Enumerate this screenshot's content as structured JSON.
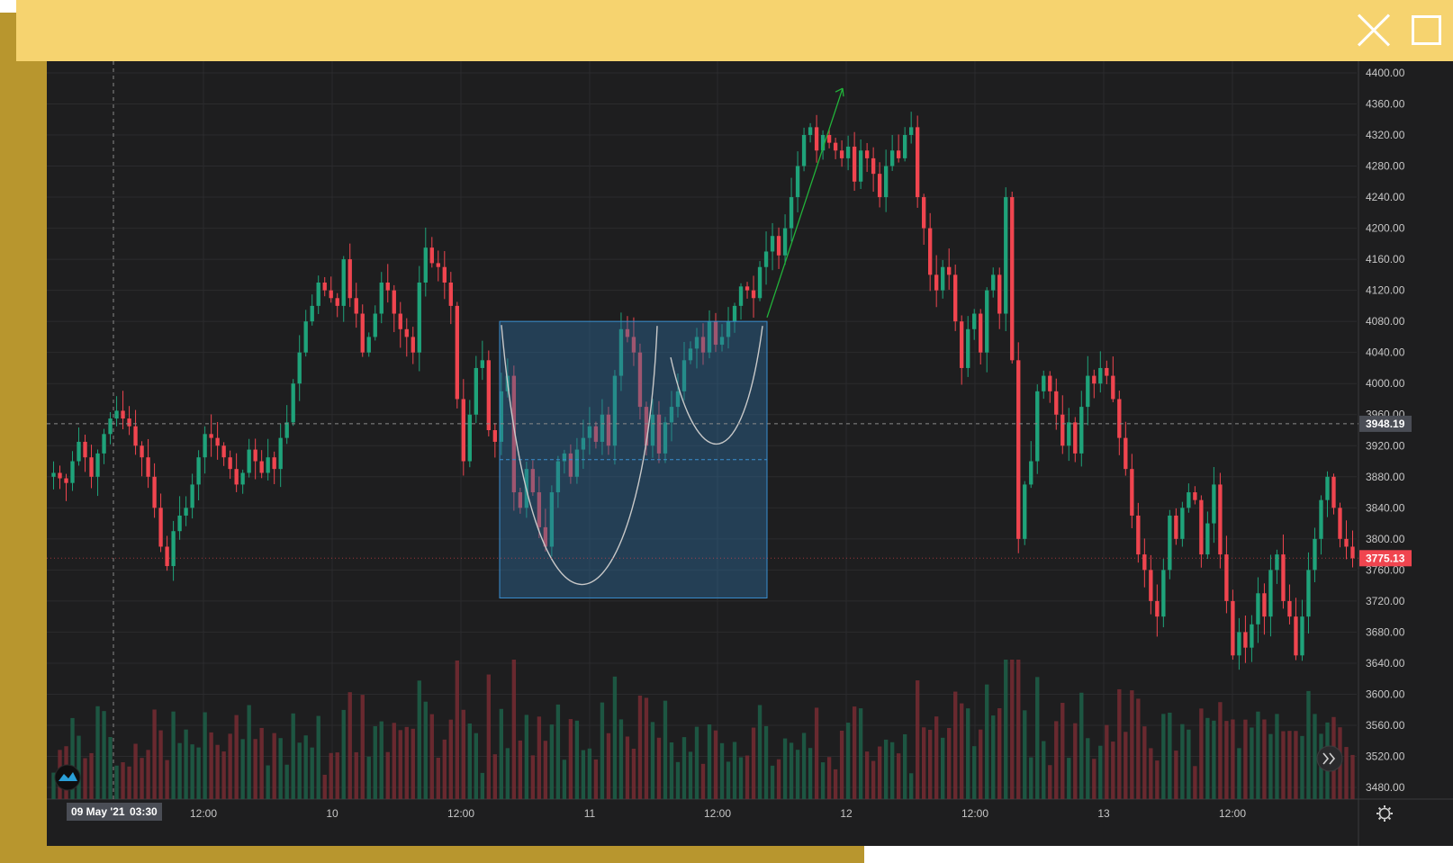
{
  "window": {
    "close_icon": "close-icon",
    "maximize_icon": "maximize-icon"
  },
  "colors": {
    "up": "#1fa37a",
    "down": "#f0454f",
    "background": "#1e1e1f",
    "frame_gold": "#b8962e",
    "top_bar": "#f6d36f"
  },
  "chart_data": {
    "type": "candlestick",
    "y_axis": {
      "ticks": [
        "4400.00",
        "4360.00",
        "4320.00",
        "4280.00",
        "4240.00",
        "4200.00",
        "4160.00",
        "4120.00",
        "4080.00",
        "4040.00",
        "4000.00",
        "3960.00",
        "3920.00",
        "3880.00",
        "3840.00",
        "3800.00",
        "3760.00",
        "3720.00",
        "3680.00",
        "3640.00",
        "3600.00",
        "3560.00",
        "3520.00",
        "3480.00"
      ],
      "range": [
        3465,
        4415
      ]
    },
    "x_axis": {
      "ticks": [
        "12:00",
        "10",
        "12:00",
        "11",
        "12:00",
        "12",
        "12:00",
        "13",
        "12:00"
      ]
    },
    "crosshair": {
      "price_label": "3948.19",
      "price": 3948.19,
      "date_label": "09 May '21",
      "time_label": "03:30"
    },
    "last_price": {
      "label": "3775.13",
      "value": 3775.13
    },
    "pattern": {
      "name": "cup and handle",
      "box_top": 4080,
      "box_bottom": 3724,
      "box_mid": 3902,
      "arrow_from": 4085,
      "arrow_to": 4380
    },
    "price_path": [
      [
        0,
        3885
      ],
      [
        5,
        3878
      ],
      [
        10,
        3872
      ],
      [
        15,
        3900
      ],
      [
        20,
        3925
      ],
      [
        25,
        3905
      ],
      [
        30,
        3880
      ],
      [
        35,
        3910
      ],
      [
        40,
        3935
      ],
      [
        45,
        3955
      ],
      [
        50,
        3965
      ],
      [
        55,
        3955
      ],
      [
        60,
        3945
      ],
      [
        65,
        3920
      ],
      [
        70,
        3905
      ],
      [
        75,
        3880
      ],
      [
        80,
        3840
      ],
      [
        85,
        3790
      ],
      [
        90,
        3765
      ],
      [
        95,
        3810
      ],
      [
        100,
        3830
      ],
      [
        105,
        3840
      ],
      [
        110,
        3870
      ],
      [
        115,
        3905
      ],
      [
        120,
        3935
      ],
      [
        125,
        3930
      ],
      [
        130,
        3920
      ],
      [
        135,
        3905
      ],
      [
        140,
        3890
      ],
      [
        145,
        3870
      ],
      [
        150,
        3885
      ],
      [
        155,
        3915
      ],
      [
        160,
        3900
      ],
      [
        165,
        3885
      ],
      [
        170,
        3905
      ],
      [
        175,
        3890
      ],
      [
        180,
        3930
      ],
      [
        185,
        3950
      ],
      [
        190,
        4000
      ],
      [
        195,
        4040
      ],
      [
        200,
        4080
      ],
      [
        205,
        4100
      ],
      [
        210,
        4130
      ],
      [
        215,
        4120
      ],
      [
        220,
        4110
      ],
      [
        225,
        4100
      ],
      [
        230,
        4160
      ],
      [
        235,
        4110
      ],
      [
        240,
        4090
      ],
      [
        245,
        4040
      ],
      [
        250,
        4060
      ],
      [
        255,
        4090
      ],
      [
        260,
        4130
      ],
      [
        265,
        4120
      ],
      [
        270,
        4090
      ],
      [
        275,
        4070
      ],
      [
        280,
        4060
      ],
      [
        285,
        4040
      ],
      [
        290,
        4130
      ],
      [
        295,
        4175
      ],
      [
        300,
        4155
      ],
      [
        305,
        4150
      ],
      [
        310,
        4130
      ],
      [
        315,
        4100
      ],
      [
        320,
        3980
      ],
      [
        325,
        3900
      ],
      [
        330,
        3960
      ],
      [
        335,
        4020
      ],
      [
        340,
        4030
      ],
      [
        345,
        3940
      ],
      [
        350,
        3925
      ],
      [
        355,
        3990
      ],
      [
        360,
        4010
      ],
      [
        365,
        3860
      ],
      [
        370,
        3840
      ],
      [
        375,
        3890
      ],
      [
        380,
        3860
      ],
      [
        385,
        3815
      ],
      [
        390,
        3790
      ],
      [
        395,
        3860
      ],
      [
        400,
        3900
      ],
      [
        405,
        3910
      ],
      [
        410,
        3880
      ],
      [
        415,
        3915
      ],
      [
        420,
        3930
      ],
      [
        425,
        3945
      ],
      [
        430,
        3925
      ],
      [
        435,
        3960
      ],
      [
        440,
        3920
      ],
      [
        445,
        4010
      ],
      [
        450,
        4070
      ],
      [
        455,
        4060
      ],
      [
        460,
        4040
      ],
      [
        465,
        3970
      ],
      [
        470,
        3920
      ],
      [
        475,
        3960
      ],
      [
        480,
        3910
      ],
      [
        485,
        3950
      ],
      [
        490,
        3970
      ],
      [
        495,
        3990
      ],
      [
        500,
        4030
      ],
      [
        505,
        4045
      ],
      [
        510,
        4060
      ],
      [
        515,
        4040
      ],
      [
        520,
        4080
      ],
      [
        525,
        4050
      ],
      [
        530,
        4060
      ],
      [
        535,
        4080
      ],
      [
        540,
        4100
      ],
      [
        545,
        4125
      ],
      [
        550,
        4120
      ],
      [
        555,
        4110
      ],
      [
        560,
        4150
      ],
      [
        565,
        4170
      ],
      [
        570,
        4190
      ],
      [
        575,
        4165
      ],
      [
        580,
        4200
      ],
      [
        585,
        4240
      ],
      [
        590,
        4280
      ],
      [
        595,
        4320
      ],
      [
        600,
        4330
      ],
      [
        605,
        4300
      ],
      [
        610,
        4320
      ],
      [
        615,
        4310
      ],
      [
        620,
        4300
      ],
      [
        625,
        4290
      ],
      [
        630,
        4305
      ],
      [
        635,
        4260
      ],
      [
        640,
        4300
      ],
      [
        645,
        4290
      ],
      [
        650,
        4270
      ],
      [
        655,
        4240
      ],
      [
        660,
        4280
      ],
      [
        665,
        4300
      ],
      [
        670,
        4290
      ],
      [
        675,
        4320
      ],
      [
        680,
        4330
      ],
      [
        685,
        4240
      ],
      [
        690,
        4200
      ],
      [
        695,
        4140
      ],
      [
        700,
        4120
      ],
      [
        705,
        4150
      ],
      [
        710,
        4140
      ],
      [
        715,
        4080
      ],
      [
        720,
        4020
      ],
      [
        725,
        4070
      ],
      [
        730,
        4090
      ],
      [
        735,
        4040
      ],
      [
        740,
        4120
      ],
      [
        745,
        4140
      ],
      [
        750,
        4090
      ],
      [
        755,
        4240
      ],
      [
        760,
        4030
      ],
      [
        765,
        3800
      ],
      [
        770,
        3870
      ],
      [
        775,
        3900
      ],
      [
        780,
        3990
      ],
      [
        785,
        4010
      ],
      [
        790,
        3990
      ],
      [
        795,
        3960
      ],
      [
        800,
        3920
      ],
      [
        805,
        3950
      ],
      [
        810,
        3910
      ],
      [
        815,
        3970
      ],
      [
        820,
        4010
      ],
      [
        825,
        4000
      ],
      [
        830,
        4020
      ],
      [
        835,
        4010
      ],
      [
        840,
        3980
      ],
      [
        845,
        3930
      ],
      [
        850,
        3890
      ],
      [
        855,
        3830
      ],
      [
        860,
        3780
      ],
      [
        865,
        3760
      ],
      [
        870,
        3720
      ],
      [
        875,
        3700
      ],
      [
        880,
        3760
      ],
      [
        885,
        3830
      ],
      [
        890,
        3800
      ],
      [
        895,
        3840
      ],
      [
        900,
        3860
      ],
      [
        905,
        3850
      ],
      [
        910,
        3780
      ],
      [
        915,
        3820
      ],
      [
        920,
        3870
      ],
      [
        925,
        3780
      ],
      [
        930,
        3720
      ],
      [
        935,
        3650
      ],
      [
        940,
        3680
      ],
      [
        945,
        3660
      ],
      [
        950,
        3690
      ],
      [
        955,
        3730
      ],
      [
        960,
        3700
      ],
      [
        965,
        3760
      ],
      [
        970,
        3780
      ],
      [
        975,
        3720
      ],
      [
        980,
        3700
      ],
      [
        985,
        3650
      ],
      [
        990,
        3700
      ],
      [
        995,
        3760
      ],
      [
        1000,
        3800
      ],
      [
        1005,
        3850
      ],
      [
        1010,
        3880
      ],
      [
        1015,
        3840
      ],
      [
        1020,
        3800
      ],
      [
        1025,
        3790
      ],
      [
        1030,
        3775
      ]
    ]
  }
}
